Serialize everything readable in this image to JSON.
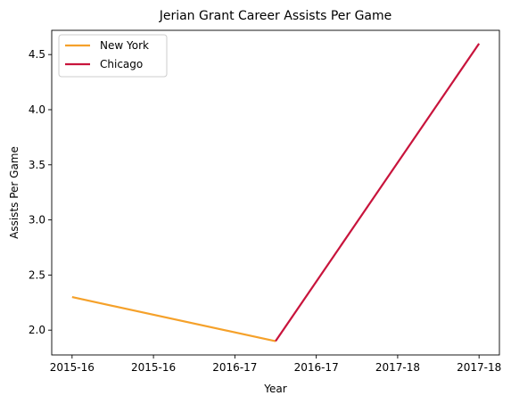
{
  "chart_data": {
    "type": "line",
    "title": "Jerian Grant Career Assists Per Game",
    "xlabel": "Year",
    "ylabel": "Assists Per Game",
    "x_ticks": [
      {
        "pos": 0,
        "label": "2015-16"
      },
      {
        "pos": 1,
        "label": "2015-16"
      },
      {
        "pos": 2,
        "label": "2016-17"
      },
      {
        "pos": 3,
        "label": "2016-17"
      },
      {
        "pos": 4,
        "label": "2017-18"
      },
      {
        "pos": 5,
        "label": "2017-18"
      }
    ],
    "xlim": [
      -0.25,
      5.25
    ],
    "ylim": [
      1.775,
      4.72
    ],
    "y_ticks": [
      2.0,
      2.5,
      3.0,
      3.5,
      4.0,
      4.5
    ],
    "grid": false,
    "legend_position": "top-left",
    "series": [
      {
        "name": "New York",
        "color": "#f5a12a",
        "x": [
          0,
          2.5
        ],
        "y": [
          2.3,
          1.9
        ]
      },
      {
        "name": "Chicago",
        "color": "#c8143c",
        "x": [
          2.5,
          5
        ],
        "y": [
          1.9,
          4.6
        ]
      }
    ]
  }
}
